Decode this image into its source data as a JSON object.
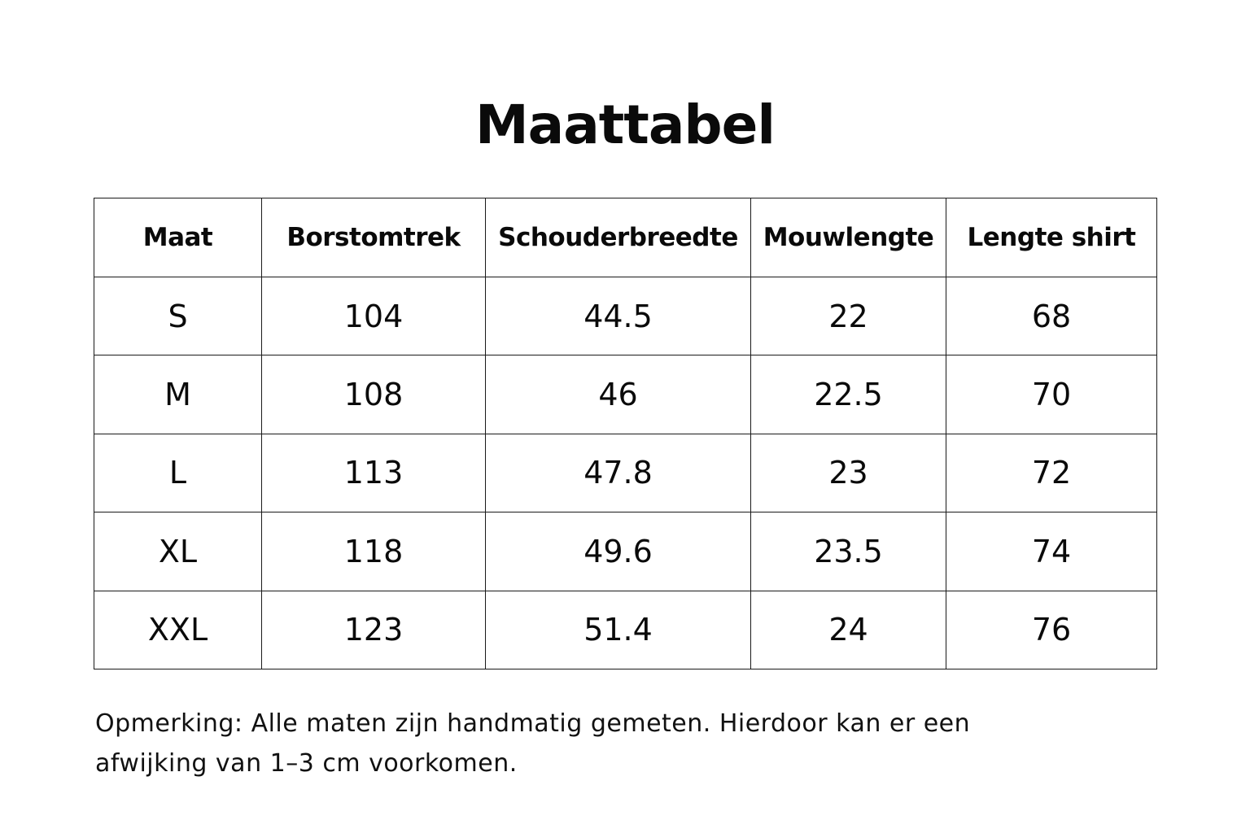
{
  "title": "Maattabel",
  "table": {
    "headers": [
      "Maat",
      "Borstomtrek",
      "Schouderbreedte",
      "Mouwlengte",
      "Lengte shirt"
    ],
    "rows": [
      [
        "S",
        "104",
        "44.5",
        "22",
        "68"
      ],
      [
        "M",
        "108",
        "46",
        "22.5",
        "70"
      ],
      [
        "L",
        "113",
        "47.8",
        "23",
        "72"
      ],
      [
        "XL",
        "118",
        "49.6",
        "23.5",
        "74"
      ],
      [
        "XXL",
        "123",
        "51.4",
        "24",
        "76"
      ]
    ]
  },
  "note": {
    "line1": "Opmerking: Alle maten zijn handmatig gemeten. Hierdoor kan er een",
    "line2": "afwijking van 1–3 cm voorkomen."
  }
}
